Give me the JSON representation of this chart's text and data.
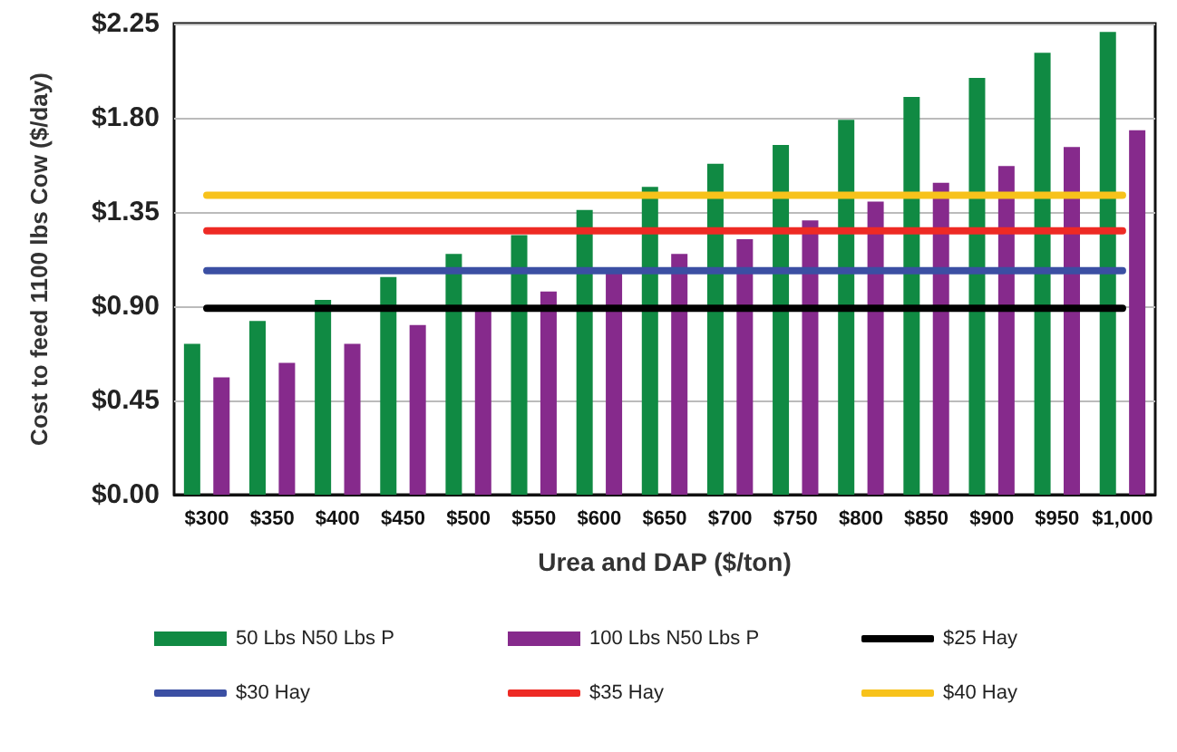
{
  "chart_data": {
    "type": "bar",
    "xlabel": "Urea and DAP ($/ton)",
    "ylabel": "Cost to feed 1100 lbs Cow ($/day)",
    "categories": [
      "$300",
      "$350",
      "$400",
      "$450",
      "$500",
      "$550",
      "$600",
      "$650",
      "$700",
      "$750",
      "$800",
      "$850",
      "$900",
      "$950",
      "$1,000"
    ],
    "series": [
      {
        "name": "50 Lbs N50 Lbs P",
        "color": "#108a43",
        "values": [
          0.72,
          0.83,
          0.93,
          1.04,
          1.15,
          1.24,
          1.36,
          1.47,
          1.58,
          1.67,
          1.79,
          1.9,
          1.99,
          2.11,
          2.21
        ]
      },
      {
        "name": "100 Lbs N50 Lbs P",
        "color": "#862a8c",
        "values": [
          0.56,
          0.63,
          0.72,
          0.81,
          0.89,
          0.97,
          1.06,
          1.15,
          1.22,
          1.31,
          1.4,
          1.49,
          1.57,
          1.66,
          1.74
        ]
      },
      {
        "name": "$25 Hay",
        "type": "line",
        "color": "#000000",
        "marker": "none",
        "values": [
          0.89,
          0.89,
          0.89,
          0.89,
          0.89,
          0.89,
          0.89,
          0.89,
          0.89,
          0.89,
          0.89,
          0.89,
          0.89,
          0.89,
          0.89
        ]
      },
      {
        "name": "$30 Hay",
        "type": "line",
        "color": "#3b4fa3",
        "marker": "none",
        "values": [
          1.07,
          1.07,
          1.07,
          1.07,
          1.07,
          1.07,
          1.07,
          1.07,
          1.07,
          1.07,
          1.07,
          1.07,
          1.07,
          1.07,
          1.07
        ]
      },
      {
        "name": "$35 Hay",
        "type": "line",
        "color": "#ee2a24",
        "marker": "none",
        "values": [
          1.26,
          1.26,
          1.26,
          1.26,
          1.26,
          1.26,
          1.26,
          1.26,
          1.26,
          1.26,
          1.26,
          1.26,
          1.26,
          1.26,
          1.26
        ]
      },
      {
        "name": "$40 Hay",
        "type": "line",
        "color": "#f7c21b",
        "marker": "none",
        "values": [
          1.43,
          1.43,
          1.43,
          1.43,
          1.43,
          1.43,
          1.43,
          1.43,
          1.43,
          1.43,
          1.43,
          1.43,
          1.43,
          1.43,
          1.43
        ]
      }
    ],
    "ylim": [
      0,
      2.25
    ],
    "yticks": [
      {
        "value": 0,
        "label": "$0.00"
      },
      {
        "value": 0.45,
        "label": "$0.45"
      },
      {
        "value": 0.9,
        "label": "$0.90"
      },
      {
        "value": 1.35,
        "label": "$1.35"
      },
      {
        "value": 1.8,
        "label": "$1.80"
      },
      {
        "value": 2.25,
        "label": "$2.25"
      }
    ],
    "grid": "y",
    "legend": "bottom"
  }
}
